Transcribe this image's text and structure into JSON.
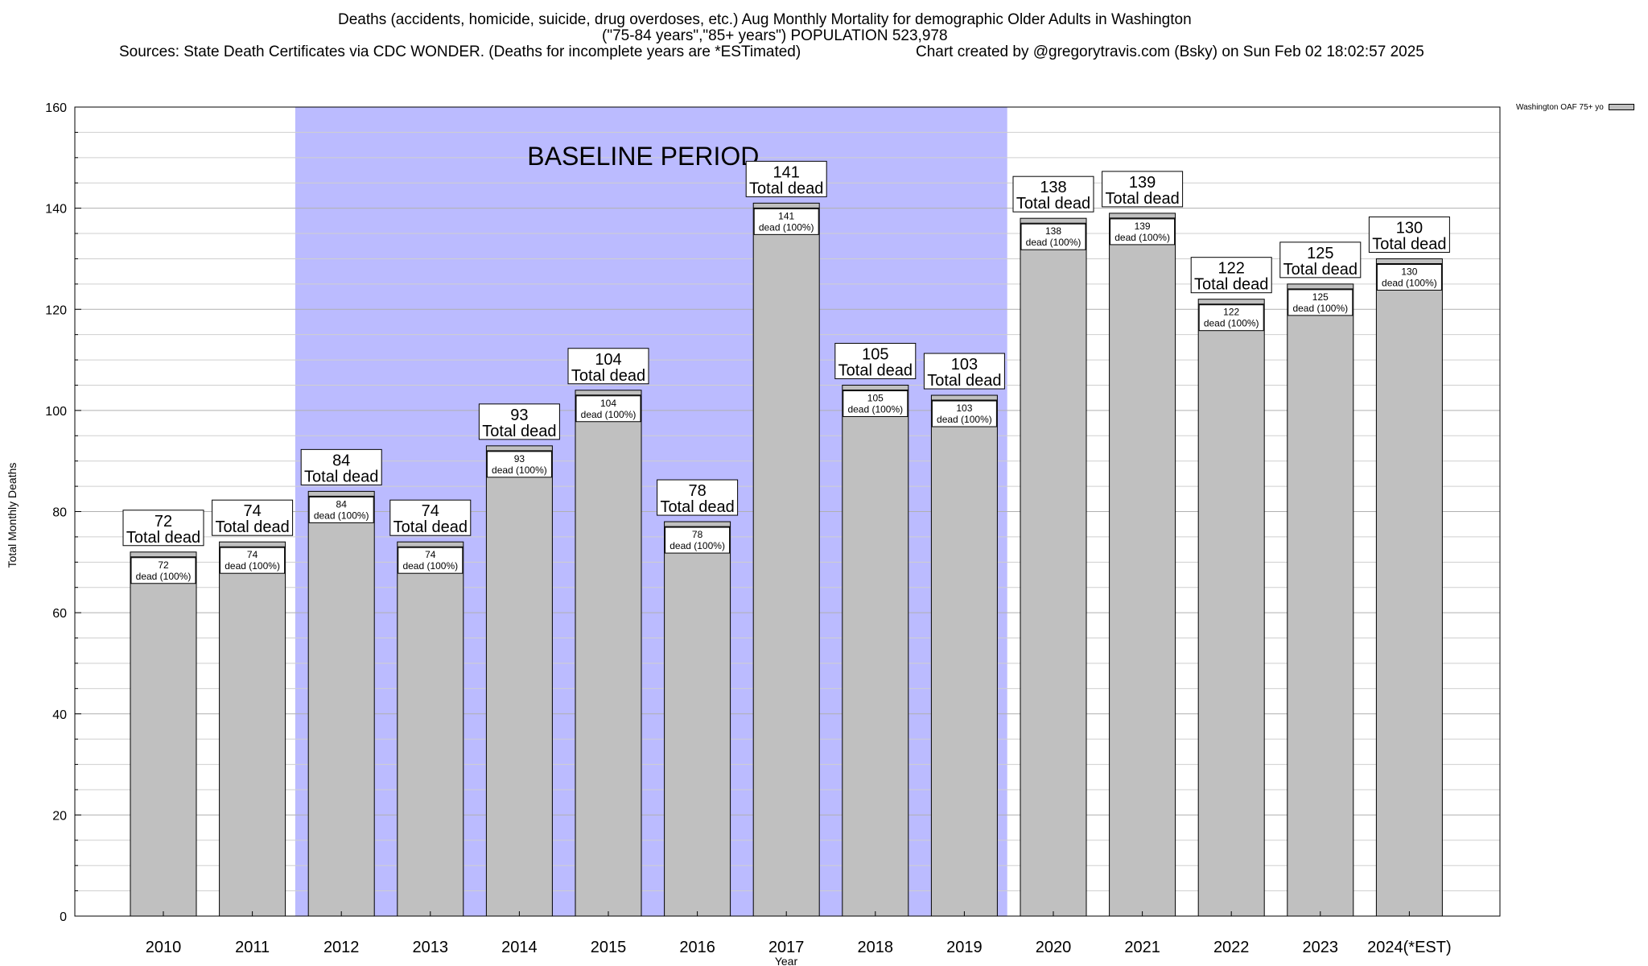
{
  "header": {
    "line1": "Deaths (accidents, homicide, suicide, drug overdoses, etc.) Aug Monthly Mortality for demographic Older Adults in Washington",
    "line2": "(\"75-84 years\",\"85+ years\") POPULATION 523,978",
    "line3": "Sources: State Death Certificates via CDC WONDER. (Deaths for incomplete years are *ESTimated)",
    "line4": "Chart created by @gregorytravis.com (Bsky) on Sun Feb 02 18:02:57 2025"
  },
  "legend": {
    "label": "Washington OAF 75+ yo",
    "color": "#c0c0c0"
  },
  "chart_data": {
    "type": "bar",
    "xlabel": "Year",
    "ylabel": "Total Monthly Deaths",
    "ylim": [
      0,
      160
    ],
    "yticks": [
      0,
      20,
      40,
      60,
      80,
      100,
      120,
      140,
      160
    ],
    "grid": true,
    "legend_position": "top-right",
    "bar_color": "#c0c0c0",
    "baseline_color": "#bbbbff",
    "categories": [
      "2010",
      "2011",
      "2012",
      "2013",
      "2014",
      "2015",
      "2016",
      "2017",
      "2018",
      "2019",
      "2020",
      "2021",
      "2022",
      "2023",
      "2024(*EST)"
    ],
    "series": [
      {
        "name": "Washington OAF 75+ yo",
        "values": [
          72,
          74,
          84,
          74,
          93,
          104,
          78,
          141,
          105,
          103,
          138,
          139,
          122,
          125,
          130
        ]
      }
    ],
    "baseline_period": {
      "label": "BASELINE PERIOD",
      "start": "2012",
      "end": "2019"
    },
    "total_label": "Total dead",
    "inner_label_suffix": "dead (100%)"
  }
}
